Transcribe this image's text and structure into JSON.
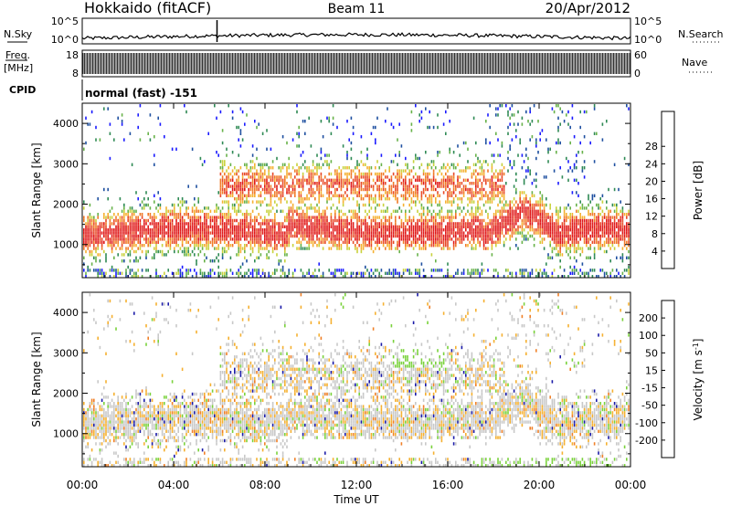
{
  "header": {
    "station": "Hokkaido (fitACF)",
    "beam": "Beam 11",
    "date": "20/Apr/2012"
  },
  "left_labels": {
    "nsky": "N.Sky",
    "freq": "Freq.",
    "freq_unit": "[MHz]",
    "cpid": "CPID"
  },
  "right_labels": {
    "nsearch": "N.Search",
    "nave": "Nave"
  },
  "small_axes": {
    "nsky_ticks": [
      "10^5",
      "10^0"
    ],
    "nsearch_ticks": [
      "10^5",
      "10^0"
    ],
    "freq_ticks": [
      "18",
      "8"
    ],
    "nave_ticks": [
      "60",
      "0"
    ]
  },
  "cpid_text": "normal (fast) -151",
  "chart_data": [
    {
      "type": "heatmap",
      "name": "power",
      "ylabel": "Slant Range [km]",
      "xlabel": "Time UT",
      "x_ticks": [
        "00:00",
        "04:00",
        "08:00",
        "12:00",
        "16:00",
        "20:00",
        "00:00"
      ],
      "y_ticks": [
        1000,
        2000,
        3000,
        4000
      ],
      "ylim": [
        180,
        4500
      ],
      "xlim_hours": [
        0,
        24
      ],
      "colorbar": {
        "label": "Power [dB]",
        "ticks": [
          4,
          8,
          12,
          16,
          20,
          24,
          28
        ],
        "colors": [
          "#1a1aff",
          "#1e4fa0",
          "#2f8a55",
          "#68b24a",
          "#c8d23c",
          "#f5b030",
          "#f07a28",
          "#e84a28",
          "#e01818"
        ]
      }
    },
    {
      "type": "heatmap",
      "name": "velocity",
      "ylabel": "Slant Range [km]",
      "xlabel": "Time UT",
      "x_ticks": [
        "00:00",
        "04:00",
        "08:00",
        "12:00",
        "16:00",
        "20:00",
        "00:00"
      ],
      "y_ticks": [
        1000,
        2000,
        3000,
        4000
      ],
      "ylim": [
        180,
        4500
      ],
      "xlim_hours": [
        0,
        24
      ],
      "colorbar": {
        "label": "Velocity [m s",
        "label_sup": "-1",
        "label_end": "]",
        "ticks": [
          200,
          100,
          50,
          15,
          -15,
          -50,
          -100,
          -200
        ],
        "colors": [
          "#1a1aa8",
          "#2a6ab0",
          "#2e9a5a",
          "#7ad23c",
          "#c8c8c8",
          "#f5b030",
          "#f08028",
          "#e84828",
          "#e01818"
        ]
      }
    }
  ]
}
